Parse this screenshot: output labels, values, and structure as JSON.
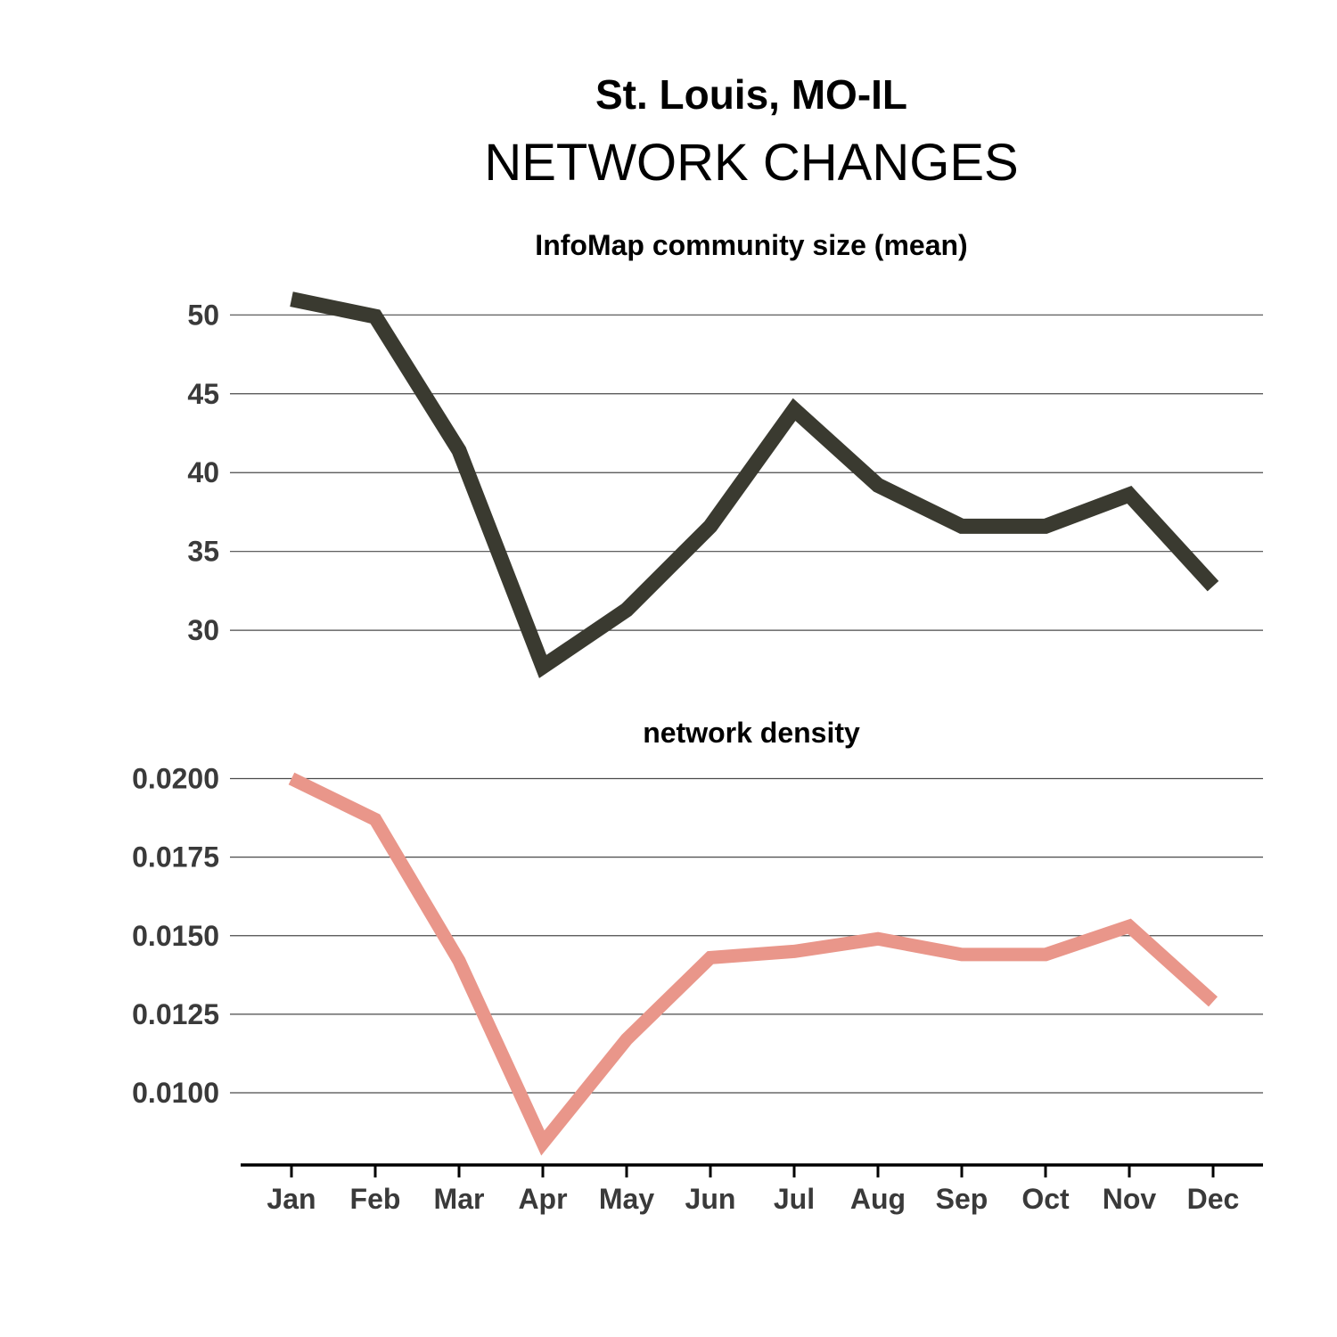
{
  "header": {
    "title": "St. Louis, MO-IL",
    "subtitle": "NETWORK CHANGES"
  },
  "chart_data": [
    {
      "type": "line",
      "title": "InfoMap community size (mean)",
      "xlabel": "",
      "ylabel": "",
      "categories": [
        "Jan",
        "Feb",
        "Mar",
        "Apr",
        "May",
        "Jun",
        "Jul",
        "Aug",
        "Sep",
        "Oct",
        "Nov",
        "Dec"
      ],
      "series": [
        {
          "values": [
            51.0,
            49.9,
            41.4,
            27.7,
            31.3,
            36.6,
            44.0,
            39.2,
            36.6,
            36.6,
            38.6,
            32.8
          ],
          "color": "#3a3a30"
        }
      ],
      "yticks": [
        30,
        35,
        40,
        45,
        50
      ],
      "ytick_labels": [
        "30",
        "35",
        "40",
        "45",
        "50"
      ],
      "ylim": [
        25.6,
        51.6
      ],
      "grid": true
    },
    {
      "type": "line",
      "title": "network density",
      "xlabel": "",
      "ylabel": "",
      "categories": [
        "Jan",
        "Feb",
        "Mar",
        "Apr",
        "May",
        "Jun",
        "Jul",
        "Aug",
        "Sep",
        "Oct",
        "Nov",
        "Dec"
      ],
      "series": [
        {
          "values": [
            0.02,
            0.0187,
            0.0142,
            0.0084,
            0.0117,
            0.0143,
            0.0145,
            0.0149,
            0.0144,
            0.0144,
            0.0153,
            0.0129
          ],
          "color": "#e9968a"
        }
      ],
      "yticks": [
        0.01,
        0.0125,
        0.015,
        0.0175,
        0.02
      ],
      "ytick_labels": [
        "0.0100",
        "0.0125",
        "0.0150",
        "0.0175",
        "0.0200"
      ],
      "ylim": [
        0.0079,
        0.0201
      ],
      "grid": true
    }
  ]
}
